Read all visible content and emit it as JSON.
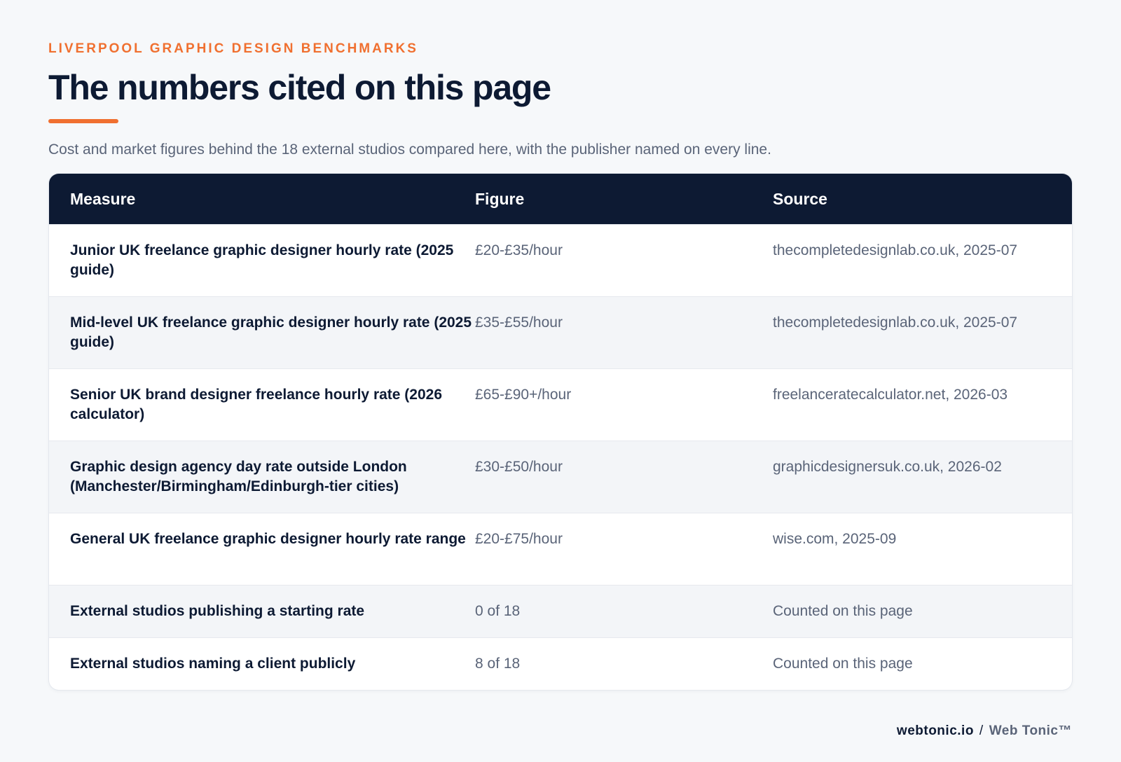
{
  "header": {
    "eyebrow": "LIVERPOOL GRAPHIC DESIGN BENCHMARKS",
    "title": "The numbers cited on this page",
    "subtitle": "Cost and market figures behind the 18 external studios compared here, with the publisher named on every line."
  },
  "table": {
    "columns": [
      "Measure",
      "Figure",
      "Source"
    ],
    "rows": [
      {
        "measure": "Junior UK freelance graphic designer hourly rate (2025 guide)",
        "figure": "£20-£35/hour",
        "source": "thecompletedesignlab.co.uk, 2025-07"
      },
      {
        "measure": "Mid-level UK freelance graphic designer hourly rate (2025 guide)",
        "figure": "£35-£55/hour",
        "source": "thecompletedesignlab.co.uk, 2025-07"
      },
      {
        "measure": "Senior UK brand designer freelance hourly rate (2026 calculator)",
        "figure": "£65-£90+/hour",
        "source": "freelanceratecalculator.net, 2026-03"
      },
      {
        "measure": "Graphic design agency day rate outside London (Manchester/Birmingham/Edinburgh-tier cities)",
        "figure": "£30-£50/hour",
        "source": "graphicdesignersuk.co.uk, 2026-02"
      },
      {
        "measure": "General UK freelance graphic designer hourly rate range",
        "figure": "£20-£75/hour",
        "source": "wise.com, 2025-09"
      },
      {
        "measure": "External studios publishing a starting rate",
        "figure": "0 of 18",
        "source": "Counted on this page"
      },
      {
        "measure": "External studios naming a client publicly",
        "figure": "8 of 18",
        "source": "Counted on this page"
      }
    ]
  },
  "footer": {
    "domain": "webtonic.io",
    "separator": "/",
    "brand": "Web Tonic™"
  }
}
